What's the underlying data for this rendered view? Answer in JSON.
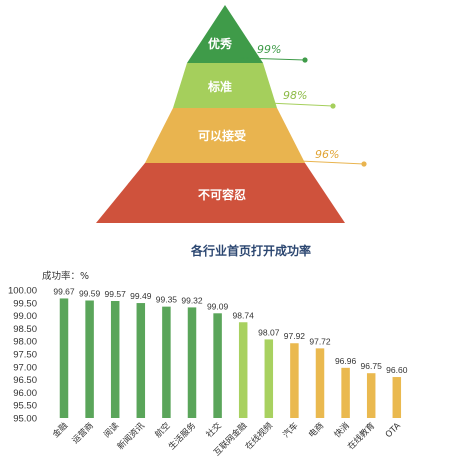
{
  "pyramid": {
    "levels": [
      {
        "label": "优秀",
        "value": "99%",
        "color": "#3f9b49"
      },
      {
        "label": "标准",
        "value": "98%",
        "color": "#a5cf5c"
      },
      {
        "label": "可以接受",
        "value": "96%",
        "color": "#e9b44f"
      },
      {
        "label": "不可容忍",
        "value": "",
        "color": "#cf523c"
      }
    ]
  },
  "chart_data": {
    "type": "bar",
    "title": "各行业首页打开成功率",
    "ylabel": "成功率：%",
    "ylim": [
      95.0,
      100.0
    ],
    "yticks": [
      "100.00",
      "99.50",
      "99.00",
      "98.50",
      "98.00",
      "97.50",
      "97.00",
      "96.50",
      "96.00",
      "95.50",
      "95.00"
    ],
    "grid": false,
    "categories": [
      "金融",
      "运营商",
      "阅读",
      "新闻资讯",
      "航空",
      "生活服务",
      "社交",
      "互联网金融",
      "在线视频",
      "汽车",
      "电商",
      "快消",
      "在线教育",
      "OTA"
    ],
    "values": [
      99.67,
      99.59,
      99.57,
      99.49,
      99.35,
      99.32,
      99.09,
      98.74,
      98.07,
      97.92,
      97.72,
      96.96,
      96.75,
      96.6
    ],
    "value_labels": [
      "99.67",
      "99.59",
      "99.57",
      "99.49",
      "99.35",
      "99.32",
      "99.09",
      "98.74",
      "98.07",
      "97.92",
      "97.72",
      "96.96",
      "96.75",
      "96.60"
    ],
    "colors": {
      "excellent": "#5aa55a",
      "standard": "#a8d160",
      "acceptable": "#eab94f"
    }
  }
}
